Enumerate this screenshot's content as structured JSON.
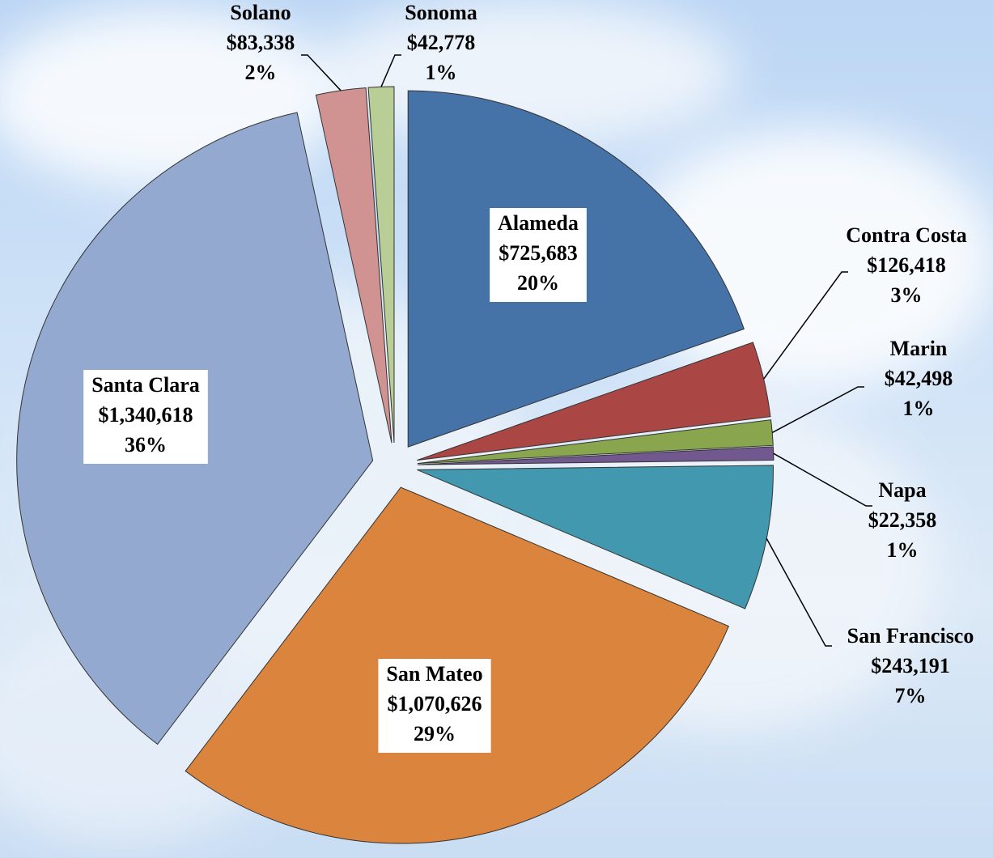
{
  "chart_data": {
    "type": "pie",
    "categories": [
      "Alameda",
      "Contra Costa",
      "Marin",
      "Napa",
      "San Francisco",
      "San Mateo",
      "Santa Clara",
      "Solano",
      "Sonoma"
    ],
    "values": [
      725683,
      126418,
      42498,
      22358,
      243191,
      1070626,
      1340618,
      83338,
      42778
    ],
    "value_labels": [
      "$725,683",
      "$126,418",
      "$42,498",
      "$22,358",
      "$243,191",
      "$1,070,626",
      "$1,340,618",
      "$83,338",
      "$42,778"
    ],
    "percent_labels": [
      "20%",
      "3%",
      "1%",
      "1%",
      "7%",
      "29%",
      "36%",
      "2%",
      "1%"
    ],
    "colors": [
      "#4572a7",
      "#aa4643",
      "#89a54e",
      "#71588f",
      "#4198af",
      "#db843d",
      "#93a9cf",
      "#d19392",
      "#b9cd96"
    ]
  }
}
